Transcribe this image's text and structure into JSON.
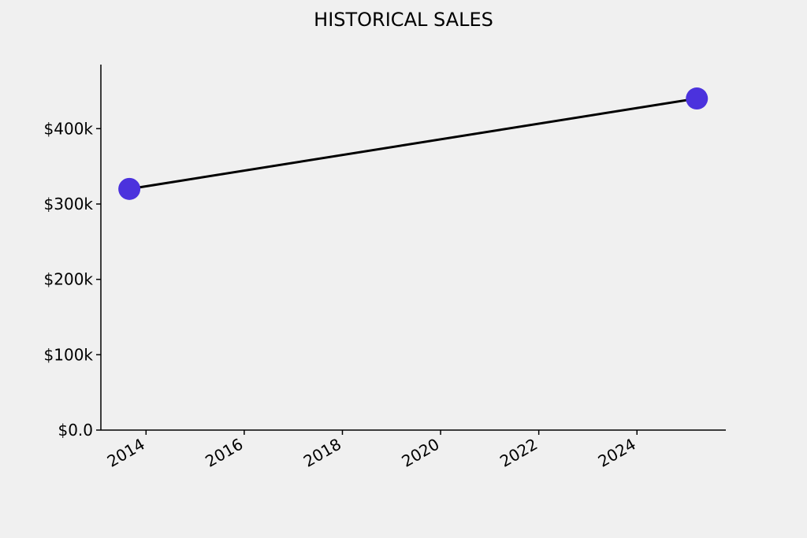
{
  "chart_data": {
    "type": "line",
    "title": "HISTORICAL SALES",
    "x": [
      2013.66,
      2025.22
    ],
    "values": [
      320000,
      440000
    ],
    "line_color": "#000000",
    "marker_color": "#4b32dd",
    "xlim": [
      2013.08,
      2025.81
    ],
    "xticks": [
      2014,
      2016,
      2018,
      2020,
      2022,
      2024
    ],
    "ylim": [
      0,
      485000
    ],
    "yticks": [
      {
        "value": 0,
        "label": "$0.0"
      },
      {
        "value": 100000,
        "label": "$100k"
      },
      {
        "value": 200000,
        "label": "$200k"
      },
      {
        "value": 300000,
        "label": "$300k"
      },
      {
        "value": 400000,
        "label": "$400k"
      }
    ],
    "grid": false
  }
}
